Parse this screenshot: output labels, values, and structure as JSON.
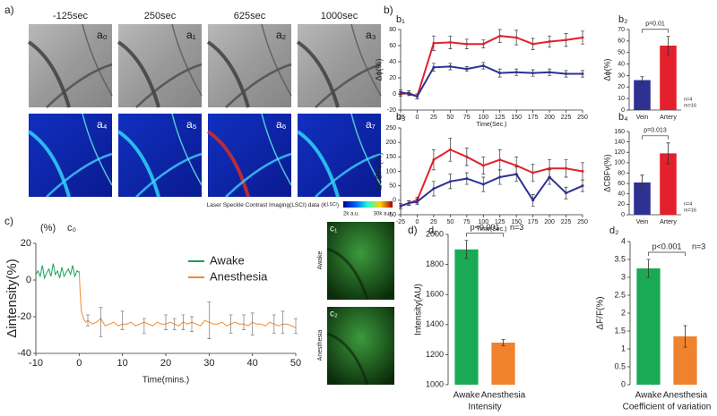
{
  "panel_letters": [
    "a)",
    "b)",
    "c)",
    "d)"
  ],
  "panel_a": {
    "times": [
      "-125sec",
      "250sec",
      "625sec",
      "1000sec"
    ],
    "labels": [
      "a₀",
      "a₁",
      "a₂",
      "a₃",
      "a₄",
      "a₅",
      "a₆",
      "a₇"
    ],
    "colorbar": {
      "caption": "Laser Speckle Contrast Imaging(LSCI) data (K",
      "caption_sub": "LSCI",
      "caption_end": ")",
      "min": "2k a.u.",
      "max": "30k a.u."
    }
  },
  "panel_c_images": {
    "labels": [
      "c₁",
      "c₂"
    ],
    "conditions": [
      "Awake",
      "Anesthesia"
    ]
  },
  "chart_data": [
    {
      "type": "line",
      "panel": "b₁",
      "ylabel": "Δϕ(%)",
      "xlabel": "Time(Sec.)",
      "x": [
        -25,
        -12.5,
        0,
        25,
        50,
        75,
        100,
        125,
        150,
        175,
        200,
        225,
        250
      ],
      "series": [
        {
          "name": "Artery",
          "color": "#e3202c",
          "values": [
            0,
            1,
            -3,
            63,
            64,
            62,
            62,
            72,
            70,
            62,
            65,
            67,
            70
          ],
          "errors": [
            3,
            3,
            3,
            9,
            8,
            6,
            5,
            8,
            9,
            7,
            7,
            8,
            8
          ]
        },
        {
          "name": "Vein",
          "color": "#2e3192",
          "values": [
            2,
            0,
            -3,
            33,
            34,
            31,
            35,
            26,
            27,
            26,
            27,
            25,
            25
          ],
          "errors": [
            3,
            2,
            3,
            5,
            4,
            3,
            4,
            5,
            4,
            4,
            4,
            4,
            4
          ]
        }
      ],
      "xlim": [
        -25,
        250
      ],
      "xticks": [
        -25,
        0,
        25,
        50,
        75,
        100,
        125,
        150,
        175,
        200,
        225,
        250
      ],
      "ylim": [
        -20,
        80
      ],
      "yticks": [
        -20,
        0,
        20,
        40,
        60,
        80
      ]
    },
    {
      "type": "bar",
      "panel": "b₂",
      "ylabel": "Δϕ(%)",
      "categories": [
        "Vein",
        "Artery"
      ],
      "values": [
        26,
        56
      ],
      "errors": [
        3,
        8
      ],
      "colors": [
        "#2e3192",
        "#e3202c"
      ],
      "ylim": [
        0,
        70
      ],
      "yticks": [
        0,
        10,
        20,
        30,
        40,
        50,
        60,
        70
      ],
      "p_value": "p=0.01",
      "notes": [
        "n=4",
        "m=16"
      ]
    },
    {
      "type": "line",
      "panel": "b₃",
      "ylabel": "ΔCBFv(%)",
      "xlabel": "Time(Sec.)",
      "x": [
        -25,
        -12.5,
        0,
        25,
        50,
        75,
        100,
        125,
        150,
        175,
        200,
        225,
        250
      ],
      "series": [
        {
          "name": "Artery",
          "color": "#e3202c",
          "values": [
            -20,
            -10,
            0,
            140,
            175,
            150,
            120,
            140,
            120,
            95,
            110,
            110,
            100
          ],
          "errors": [
            8,
            8,
            10,
            35,
            40,
            30,
            30,
            35,
            30,
            30,
            30,
            30,
            30
          ]
        },
        {
          "name": "Vein",
          "color": "#2e3192",
          "values": [
            -20,
            -10,
            -5,
            40,
            65,
            75,
            55,
            80,
            90,
            0,
            80,
            25,
            50
          ],
          "errors": [
            8,
            8,
            10,
            25,
            25,
            20,
            25,
            25,
            25,
            20,
            25,
            20,
            20
          ]
        }
      ],
      "xlim": [
        -25,
        250
      ],
      "xticks": [
        -25,
        0,
        25,
        50,
        75,
        100,
        125,
        150,
        175,
        200,
        225,
        250
      ],
      "ylim": [
        -50,
        250
      ],
      "yticks": [
        -50,
        0,
        50,
        100,
        150,
        200,
        250
      ]
    },
    {
      "type": "bar",
      "panel": "b₄",
      "ylabel": "ΔCBFv(%)",
      "categories": [
        "Vein",
        "Artery"
      ],
      "values": [
        62,
        118
      ],
      "errors": [
        14,
        20
      ],
      "colors": [
        "#2e3192",
        "#e3202c"
      ],
      "ylim": [
        0,
        160
      ],
      "yticks": [
        0,
        20,
        40,
        60,
        80,
        100,
        120,
        140,
        160
      ],
      "p_value": "p=0.013",
      "notes": [
        "n=4",
        "m=16"
      ]
    },
    {
      "type": "line",
      "panel": "c₀",
      "unit": "(%)",
      "ylabel": "Δintensity(%)",
      "xlabel": "Time(mins.)",
      "legend": "upper right",
      "series": [
        {
          "name": "Awake",
          "color": "#1aa05a",
          "x": [
            -10,
            -9.5,
            -9,
            -8.5,
            -8,
            -7.5,
            -7,
            -6.5,
            -6,
            -5.5,
            -5,
            -4.5,
            -4,
            -3.5,
            -3,
            -2.5,
            -2,
            -1.5,
            -1,
            -0.5,
            0
          ],
          "values": [
            3,
            5,
            2,
            8,
            1,
            4,
            6,
            2,
            9,
            3,
            5,
            1,
            7,
            2,
            4,
            6,
            3,
            8,
            2,
            5,
            4
          ]
        },
        {
          "name": "Anesthesia",
          "color": "#f08a30",
          "x": [
            0,
            0.25,
            0.5,
            1,
            1.5,
            2,
            3,
            4,
            5,
            6,
            7,
            8,
            9,
            10,
            11,
            12,
            13,
            14,
            15,
            16,
            17,
            18,
            19,
            20,
            21,
            22,
            23,
            24,
            25,
            26,
            27,
            28,
            29,
            30,
            31,
            32,
            33,
            34,
            35,
            36,
            37,
            38,
            39,
            40,
            41,
            42,
            43,
            44,
            45,
            46,
            47,
            48,
            49,
            50
          ],
          "values": [
            5,
            -8,
            -17,
            -21,
            -23,
            -22,
            -24,
            -23,
            -21,
            -25,
            -24,
            -23,
            -25,
            -24,
            -24,
            -23,
            -25,
            -24,
            -23,
            -24,
            -25,
            -23,
            -24,
            -24,
            -23,
            -24,
            -25,
            -23,
            -24,
            -23,
            -24,
            -25,
            -22,
            -23,
            -24,
            -24,
            -23,
            -25,
            -24,
            -23,
            -24,
            -24,
            -25,
            -23,
            -24,
            -24,
            -25,
            -23,
            -24,
            -25,
            -24,
            -24,
            -25,
            -26
          ]
        }
      ],
      "error_bars": {
        "x": [
          2,
          5,
          10,
          15,
          20,
          22,
          24,
          26,
          30,
          35,
          38,
          40,
          45,
          47,
          50
        ],
        "values": [
          -22,
          -23,
          -22,
          -25,
          -23,
          -24,
          -23,
          -24,
          -22,
          -24,
          -23,
          -24,
          -24,
          -23,
          -25
        ],
        "errors": [
          3,
          8,
          5,
          4,
          4,
          3,
          4,
          4,
          10,
          5,
          4,
          6,
          5,
          6,
          4
        ]
      },
      "xlim": [
        -10,
        50
      ],
      "xticks": [
        -10,
        0,
        10,
        20,
        30,
        40,
        50
      ],
      "ylim": [
        -40,
        20
      ],
      "yticks": [
        -40,
        -20,
        0,
        20
      ]
    },
    {
      "type": "bar",
      "panel": "d₁",
      "ylabel": "Intensity(AU)",
      "xlabel": "Intensity",
      "categories": [
        "Awake",
        "Anesthesia"
      ],
      "values": [
        1900,
        1280
      ],
      "errors": [
        60,
        20
      ],
      "colors": [
        "#1aaa55",
        "#f0822e"
      ],
      "ylim": [
        1000,
        2000
      ],
      "yticks": [
        1000,
        1200,
        1400,
        1600,
        1800,
        2000
      ],
      "p_value": "p<0.001",
      "notes": [
        "n=3"
      ]
    },
    {
      "type": "bar",
      "panel": "d₂",
      "ylabel": "ΔF/F(%)",
      "xlabel": "Coefficient of variation",
      "categories": [
        "Awake",
        "Anesthesia"
      ],
      "values": [
        3.25,
        1.35
      ],
      "errors": [
        0.25,
        0.3
      ],
      "colors": [
        "#1aaa55",
        "#f0822e"
      ],
      "ylim": [
        0,
        4
      ],
      "yticks": [
        0,
        0.5,
        1,
        1.5,
        2,
        2.5,
        3,
        3.5,
        4
      ],
      "p_value": "p<0.001",
      "notes": [
        "n=3"
      ]
    }
  ]
}
